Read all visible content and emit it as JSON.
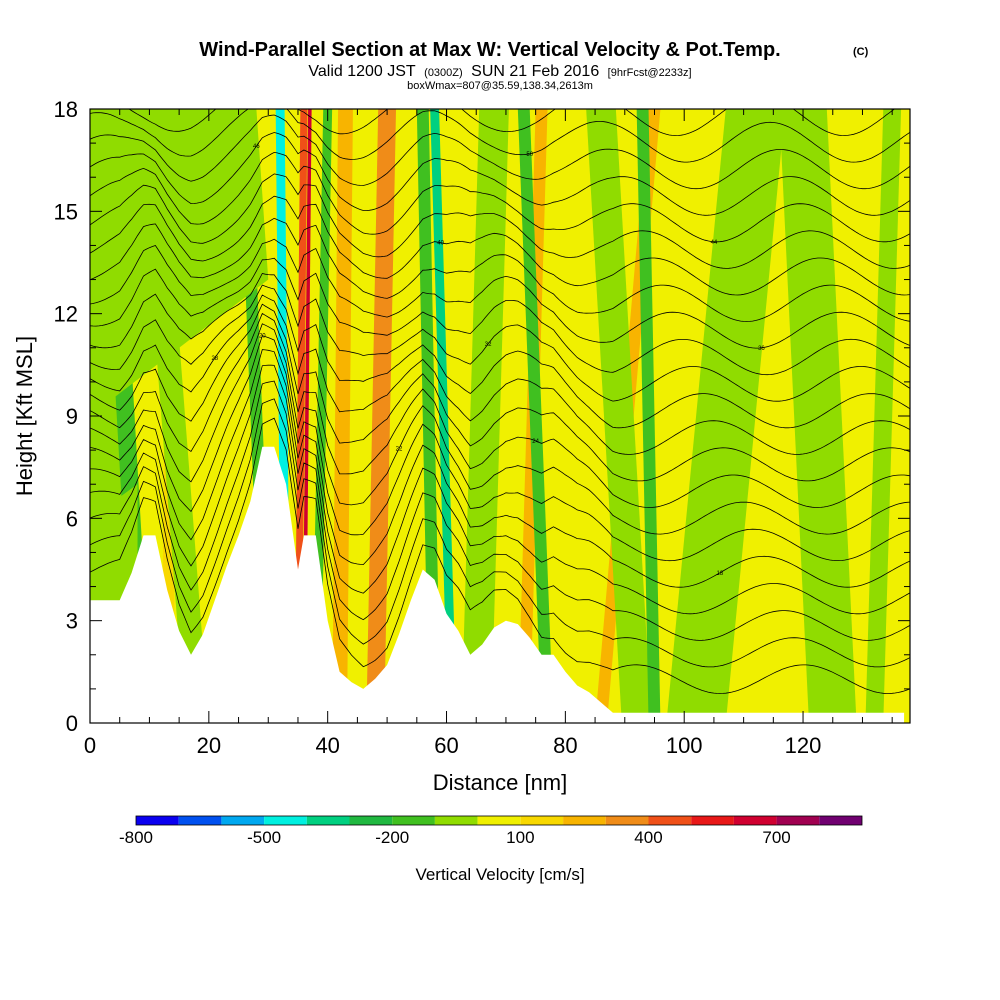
{
  "chart_data": {
    "type": "heatmap",
    "title": "Wind-Parallel Section at Max W: Vertical Velocity & Pot.Temp.",
    "title_copyright": "(C)",
    "subtitle_prefix": "Valid 1200 JST",
    "subtitle_utc": "(0300Z)",
    "subtitle_date": "SUN 21 Feb 2016",
    "subtitle_fcst": "[9hrFcst@2233z]",
    "subtitle_box": "boxWmax=807@35.59,138.34,2613m",
    "xlabel": "Distance [nm]",
    "ylabel": "Height [Kft MSL]",
    "xlim": [
      0,
      138
    ],
    "ylim": [
      0,
      18
    ],
    "x_ticks": [
      "0",
      "20",
      "40",
      "60",
      "80",
      "100",
      "120"
    ],
    "y_ticks": [
      "0",
      "3",
      "6",
      "9",
      "12",
      "15",
      "18"
    ],
    "colorbar": {
      "label": "Vertical Velocity [cm/s]",
      "tick_labels": [
        "-800",
        "-500",
        "-200",
        "100",
        "400",
        "700"
      ],
      "colors": [
        "#0a00f0",
        "#0050f0",
        "#00a8f0",
        "#00f0e0",
        "#00d080",
        "#20b840",
        "#40c020",
        "#90dc00",
        "#f0f000",
        "#f8d800",
        "#f8b400",
        "#f08c18",
        "#f05018",
        "#e81818",
        "#d00030",
        "#a00050",
        "#700070"
      ]
    },
    "terrain": {
      "x": [
        0,
        5,
        7,
        9,
        11,
        13,
        15,
        17,
        19,
        21,
        23,
        25,
        27,
        29,
        31,
        33,
        35,
        36,
        38,
        40,
        42,
        44,
        46,
        48,
        50,
        52,
        54,
        56,
        58,
        60,
        62,
        64,
        66,
        68,
        70,
        72,
        74,
        76,
        78,
        80,
        82,
        84,
        86,
        88,
        90,
        95,
        100,
        110,
        120,
        130,
        137
      ],
      "y": [
        3.6,
        3.6,
        4.4,
        5.5,
        5.5,
        3.9,
        2.7,
        2.0,
        2.6,
        3.6,
        4.6,
        5.5,
        6.5,
        8.1,
        8.1,
        7.0,
        4.5,
        5.5,
        5.5,
        3.0,
        1.5,
        1.2,
        1.0,
        1.3,
        1.7,
        2.6,
        3.6,
        4.5,
        4.2,
        3.2,
        2.7,
        2.0,
        2.3,
        2.8,
        3.0,
        2.9,
        2.5,
        2.0,
        2.0,
        1.5,
        1.1,
        0.9,
        0.6,
        0.3,
        0.3,
        0.3,
        0.3,
        0.3,
        0.3,
        0.3,
        0.3
      ]
    },
    "potential_temperature_contours_C": [
      10,
      12,
      14,
      16,
      18,
      20,
      22,
      24,
      26,
      28,
      30,
      32,
      34,
      36,
      38,
      40,
      42,
      44,
      46,
      48,
      50,
      52
    ],
    "contour_labels_shown": [
      "18",
      "20",
      "22",
      "24",
      "28",
      "32",
      "36",
      "40",
      "44",
      "46",
      "50"
    ]
  }
}
